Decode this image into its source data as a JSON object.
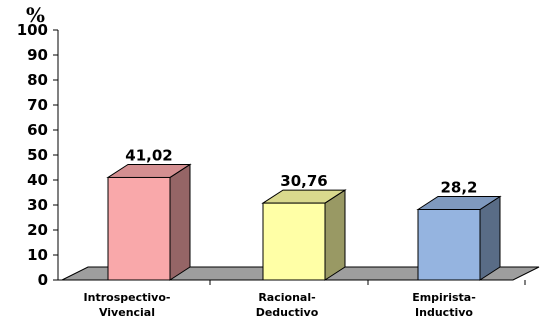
{
  "chart_data": {
    "type": "bar",
    "style": "3d",
    "categories": [
      [
        "Introspectivo-",
        "Vivencial"
      ],
      [
        "Racional-",
        "Deductivo"
      ],
      [
        "Empirista-",
        "Inductivo"
      ]
    ],
    "values": [
      41.02,
      30.76,
      28.2
    ],
    "data_labels": [
      "41,02",
      "30,76",
      "28,2"
    ],
    "colors": [
      "#f9a8aa",
      "#ffffa6",
      "#95b4e0"
    ],
    "y_unit": "%",
    "ylim": [
      0,
      100
    ],
    "y_ticks": [
      0,
      10,
      20,
      30,
      40,
      50,
      60,
      70,
      80,
      90,
      100
    ],
    "grid": false,
    "legend": "none",
    "floor_color": "#9e9e9e"
  }
}
